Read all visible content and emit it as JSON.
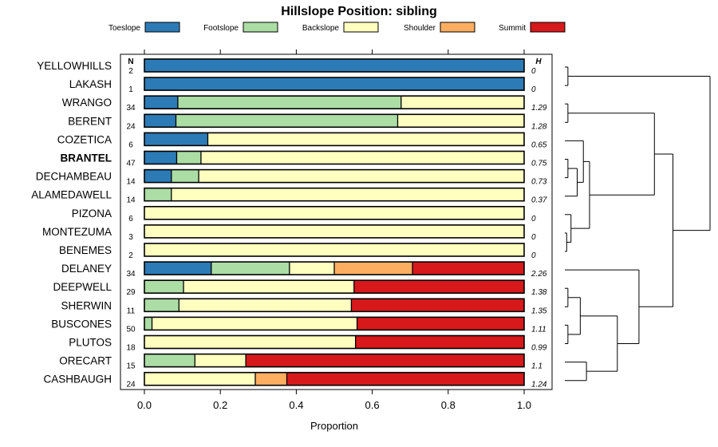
{
  "chart_data": {
    "type": "stacked-bar",
    "title": "Hillslope Position: sibling",
    "xlabel": "Proportion",
    "xlim": [
      0,
      1
    ],
    "xticks": [
      "0.0",
      "0.2",
      "0.4",
      "0.6",
      "0.8",
      "1.0"
    ],
    "tick_values": [
      0,
      0.2,
      0.4,
      0.6,
      0.8,
      1.0
    ],
    "n_header": "N",
    "h_header": "H",
    "legend": [
      {
        "name": "Toeslope",
        "color": "#2c7bb6"
      },
      {
        "name": "Footslope",
        "color": "#abdda4"
      },
      {
        "name": "Backslope",
        "color": "#ffffbf"
      },
      {
        "name": "Shoulder",
        "color": "#fdae61"
      },
      {
        "name": "Summit",
        "color": "#d7191c"
      }
    ],
    "rows": [
      {
        "label": "YELLOWHILLS",
        "n": "2",
        "h": "0",
        "bold": false,
        "values": [
          1,
          0,
          0,
          0,
          0
        ]
      },
      {
        "label": "LAKASH",
        "n": "1",
        "h": "0",
        "bold": false,
        "values": [
          1,
          0,
          0,
          0,
          0
        ]
      },
      {
        "label": "WRANGO",
        "n": "34",
        "h": "1.29",
        "bold": false,
        "values": [
          0.088,
          0.588,
          0.324,
          0,
          0
        ]
      },
      {
        "label": "BERENT",
        "n": "24",
        "h": "1.28",
        "bold": false,
        "values": [
          0.083,
          0.584,
          0.333,
          0,
          0
        ]
      },
      {
        "label": "COZETICA",
        "n": "6",
        "h": "0.65",
        "bold": false,
        "values": [
          0.167,
          0,
          0.833,
          0,
          0
        ]
      },
      {
        "label": "BRANTEL",
        "n": "47",
        "h": "0.75",
        "bold": true,
        "values": [
          0.085,
          0.064,
          0.851,
          0,
          0
        ]
      },
      {
        "label": "DECHAMBEAU",
        "n": "14",
        "h": "0.73",
        "bold": false,
        "values": [
          0.071,
          0.072,
          0.857,
          0,
          0
        ]
      },
      {
        "label": "ALAMEDAWELL",
        "n": "14",
        "h": "0.37",
        "bold": false,
        "values": [
          0,
          0.071,
          0.929,
          0,
          0
        ]
      },
      {
        "label": "PIZONA",
        "n": "6",
        "h": "0",
        "bold": false,
        "values": [
          0,
          0,
          1,
          0,
          0
        ]
      },
      {
        "label": "MONTEZUMA",
        "n": "3",
        "h": "0",
        "bold": false,
        "values": [
          0,
          0,
          1,
          0,
          0
        ]
      },
      {
        "label": "BENEMES",
        "n": "2",
        "h": "0",
        "bold": false,
        "values": [
          0,
          0,
          1,
          0,
          0
        ]
      },
      {
        "label": "DELANEY",
        "n": "34",
        "h": "2.26",
        "bold": false,
        "values": [
          0.176,
          0.206,
          0.118,
          0.206,
          0.294
        ]
      },
      {
        "label": "DEEPWELL",
        "n": "29",
        "h": "1.38",
        "bold": false,
        "values": [
          0,
          0.103,
          0.449,
          0,
          0.448
        ]
      },
      {
        "label": "SHERWIN",
        "n": "11",
        "h": "1.35",
        "bold": false,
        "values": [
          0,
          0.091,
          0.454,
          0,
          0.455
        ]
      },
      {
        "label": "BUSCONES",
        "n": "50",
        "h": "1.11",
        "bold": false,
        "values": [
          0,
          0.02,
          0.54,
          0,
          0.44
        ]
      },
      {
        "label": "PLUTOS",
        "n": "18",
        "h": "0.99",
        "bold": false,
        "values": [
          0,
          0,
          0.556,
          0,
          0.444
        ]
      },
      {
        "label": "ORECART",
        "n": "15",
        "h": "1.1",
        "bold": false,
        "values": [
          0,
          0.133,
          0.134,
          0,
          0.733
        ]
      },
      {
        "label": "CASHBAUGH",
        "n": "24",
        "h": "1.24",
        "bold": false,
        "values": [
          0,
          0,
          0.292,
          0.083,
          0.625
        ]
      }
    ],
    "dendrogram": {
      "merges": [
        {
          "a": -1,
          "b": -2,
          "h": 0.05
        },
        {
          "a": -3,
          "b": -4,
          "h": 0.05
        },
        {
          "a": -6,
          "b": -7,
          "h": 0.05
        },
        {
          "a": -10,
          "b": -11,
          "h": 0.03
        },
        {
          "a": -9,
          "b": 4,
          "h": 0.1
        },
        {
          "a": 3,
          "b": -8,
          "h": 0.2
        },
        {
          "a": -5,
          "b": 6,
          "h": 0.3
        },
        {
          "a": 7,
          "b": 5,
          "h": 0.4
        },
        {
          "a": -13,
          "b": -14,
          "h": 0.05
        },
        {
          "a": -15,
          "b": -16,
          "h": 0.05
        },
        {
          "a": 9,
          "b": 10,
          "h": 0.25
        },
        {
          "a": -17,
          "b": -18,
          "h": 0.35
        },
        {
          "a": 11,
          "b": 12,
          "h": 0.85
        },
        {
          "a": -12,
          "b": 13,
          "h": 1.2
        },
        {
          "a": 2,
          "b": 8,
          "h": 1.45
        },
        {
          "a": 15,
          "b": 14,
          "h": 1.75
        },
        {
          "a": 1,
          "b": 16,
          "h": 2.35
        }
      ],
      "max_height": 2.35
    }
  }
}
